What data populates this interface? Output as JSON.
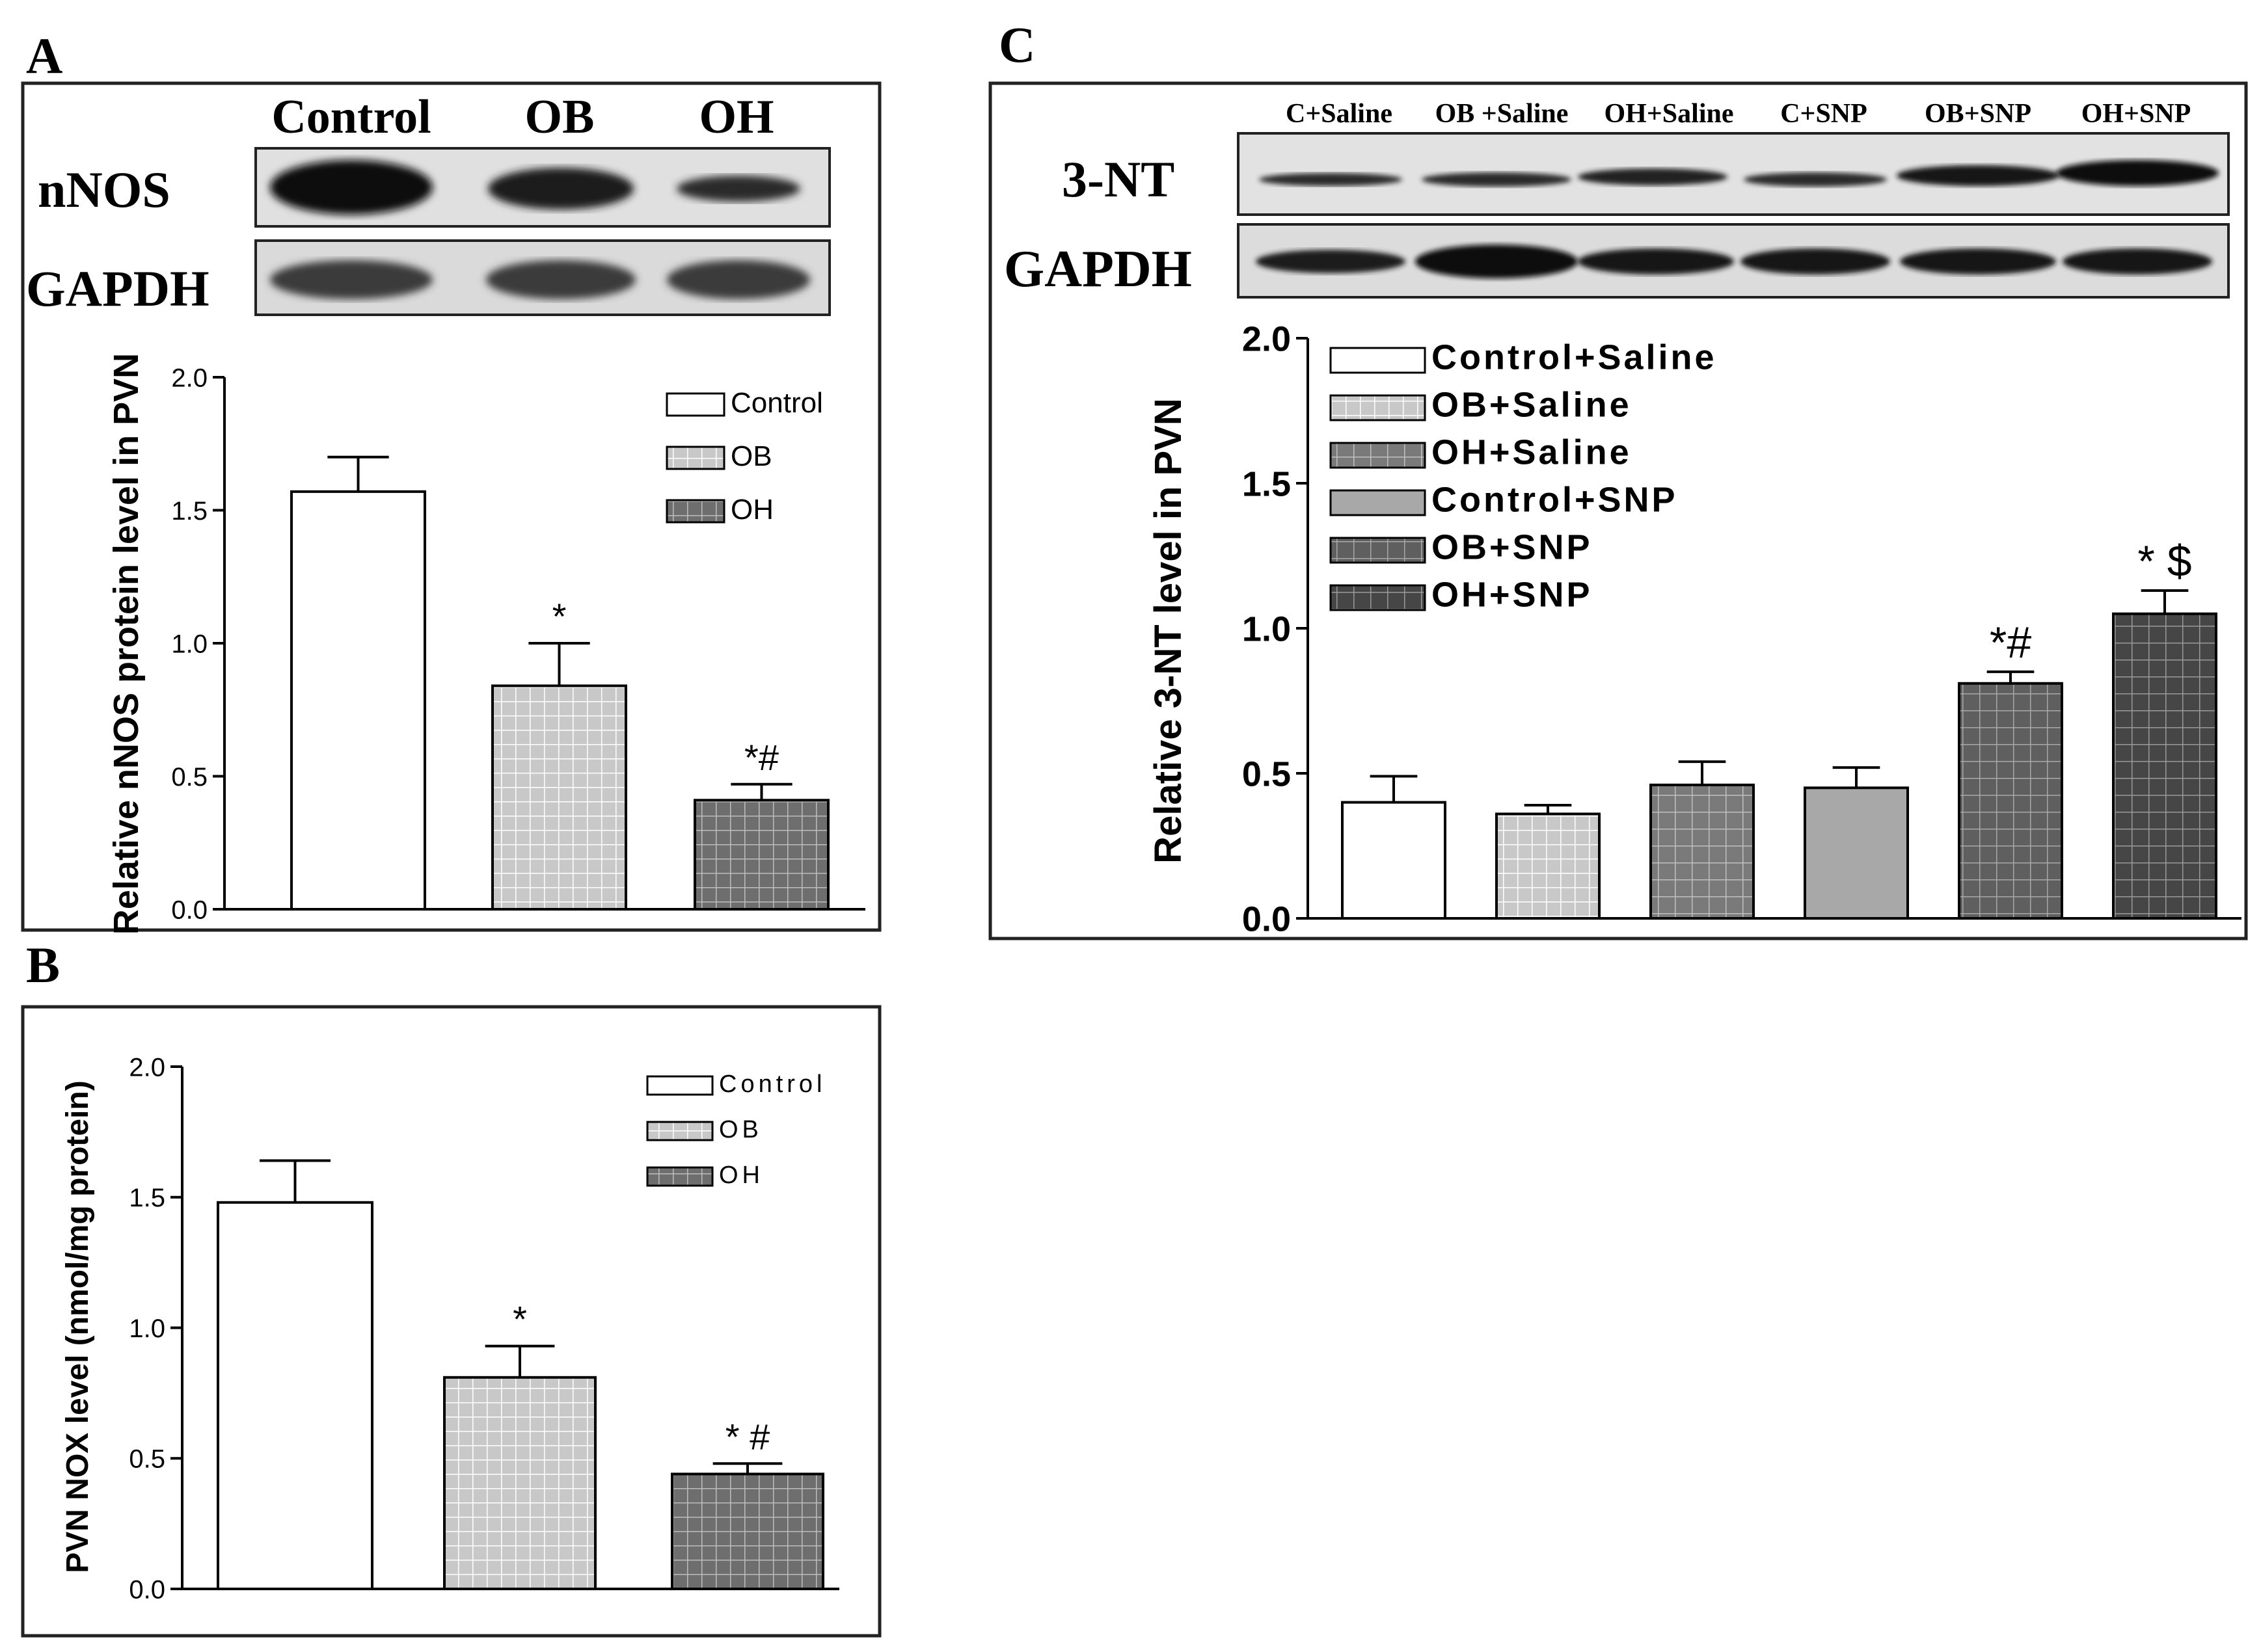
{
  "chart_data": [
    {
      "id": "A",
      "type": "bar",
      "panel_label": "A",
      "blot": {
        "lane_labels": [
          "Control",
          "OB",
          "OH"
        ],
        "rows": [
          "nNOS",
          "GAPDH"
        ]
      },
      "categories": [
        "Control",
        "OB",
        "OH"
      ],
      "values": [
        1.57,
        0.84,
        0.41
      ],
      "errors": [
        0.13,
        0.16,
        0.06
      ],
      "annotations": [
        "",
        "*",
        "*#"
      ],
      "ylabel": "Relative nNOS protein level in PVN",
      "ylim": [
        0,
        2.0
      ],
      "yticks": [
        "0.0",
        "0.5",
        "1.0",
        "1.5",
        "2.0"
      ],
      "legend": [
        "Control",
        "OB",
        "OH"
      ],
      "legend_position": "top-right"
    },
    {
      "id": "B",
      "type": "bar",
      "panel_label": "B",
      "categories": [
        "Control",
        "OB",
        "OH"
      ],
      "values": [
        1.48,
        0.81,
        0.44
      ],
      "errors": [
        0.16,
        0.12,
        0.04
      ],
      "annotations": [
        "",
        "*",
        "* #"
      ],
      "ylabel": "PVN NOX level (nmol/mg protein)",
      "ylim": [
        0,
        2.0
      ],
      "yticks": [
        "0.0",
        "0.5",
        "1.0",
        "1.5",
        "2.0"
      ],
      "legend": [
        "Control",
        "OB",
        "OH"
      ],
      "legend_position": "top-right"
    },
    {
      "id": "C",
      "type": "bar",
      "panel_label": "C",
      "blot": {
        "lane_labels": [
          "C+Saline",
          "OB +Saline",
          "OH+Saline",
          "C+SNP",
          "OB+SNP",
          "OH+SNP"
        ],
        "rows": [
          "3-NT",
          "GAPDH"
        ]
      },
      "categories": [
        "Control+Saline",
        "OB+Saline",
        "OH+Saline",
        "Control+SNP",
        "OB+SNP",
        "OH+SNP"
      ],
      "values": [
        0.4,
        0.36,
        0.46,
        0.45,
        0.81,
        1.05
      ],
      "errors": [
        0.09,
        0.03,
        0.08,
        0.07,
        0.04,
        0.08
      ],
      "annotations": [
        "",
        "",
        "",
        "",
        "*#",
        "* $"
      ],
      "ylabel": "Relative 3-NT level in PVN",
      "ylim": [
        0,
        2.0
      ],
      "yticks": [
        "0.0",
        "0.5",
        "1.0",
        "1.5",
        "2.0"
      ],
      "legend": [
        "Control+Saline",
        "OB+Saline",
        "OH+Saline",
        "Control+SNP",
        "OB+SNP",
        "OH+SNP"
      ],
      "legend_position": "top-left"
    }
  ],
  "colors": {
    "control": "#ffffff",
    "ob": "#c8c8c8",
    "oh": "#6e6e6e",
    "control_snp": "#a8a8a8",
    "ob_snp": "#6a6a6a",
    "oh_snp": "#4e4e4e",
    "blot_bg": "#e2e2e2",
    "band": "#0a0a0a"
  }
}
